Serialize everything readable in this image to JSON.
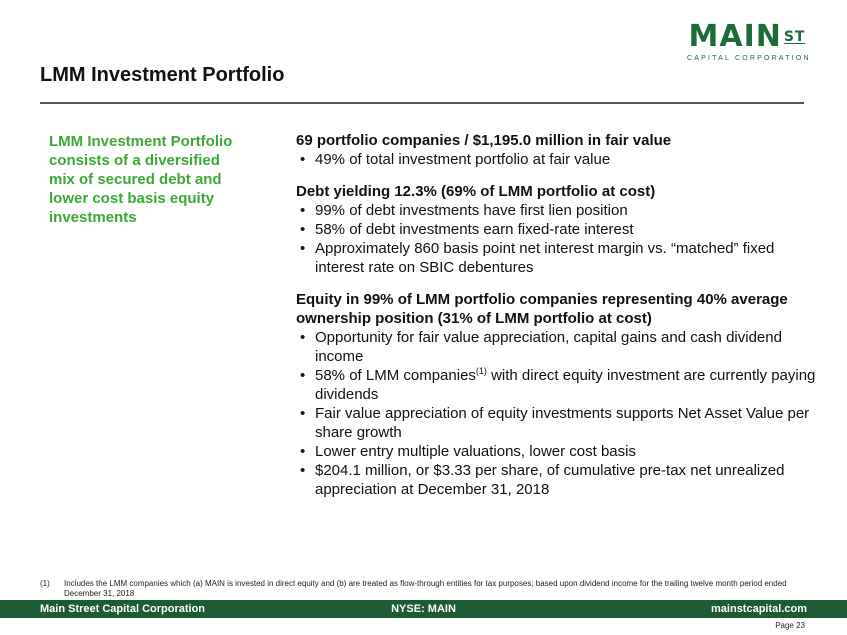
{
  "logo": {
    "main": "MAIN",
    "st": "ST",
    "sub": "CAPITAL CORPORATION"
  },
  "title": "LMM Investment Portfolio",
  "left_text": "LMM Investment Portfolio consists of a diversified mix of secured debt and lower cost basis equity investments",
  "sections": [
    {
      "heading": "69 portfolio companies / $1,195.0 million in fair value",
      "bullets": [
        "49% of total investment portfolio at fair value"
      ]
    },
    {
      "heading": "Debt yielding 12.3% (69% of LMM portfolio at cost)",
      "bullets": [
        "99% of debt investments have first lien position",
        "58% of debt investments earn fixed-rate interest",
        "Approximately 860 basis point net interest margin vs. “matched” fixed interest rate on SBIC debentures"
      ]
    },
    {
      "heading": "Equity in 99% of LMM portfolio companies representing 40% average ownership position (31% of LMM portfolio at cost)",
      "bullets": [
        "Opportunity for fair value appreciation, capital gains and cash dividend income",
        "58% of LMM companies",
        "Fair value appreciation of equity investments supports Net Asset Value per share growth",
        "Lower entry multiple valuations, lower cost basis",
        "$204.1 million, or $3.33 per share, of cumulative pre-tax net unrealized appreciation at December 31, 2018"
      ],
      "bullet2_sup": "(1)",
      "bullet2_rest": " with direct equity investment are currently paying dividends"
    }
  ],
  "footnote": {
    "number": "(1)",
    "text": "Includes the LMM companies which (a) MAIN is invested in direct equity and (b) are treated as flow-through entities for tax purposes; based upon dividend income for the trailing twelve month period ended December 31, 2018"
  },
  "footer": {
    "left": "Main Street Capital Corporation",
    "center": "NYSE: MAIN",
    "right": "mainstcapital.com"
  },
  "page": "Page 23"
}
